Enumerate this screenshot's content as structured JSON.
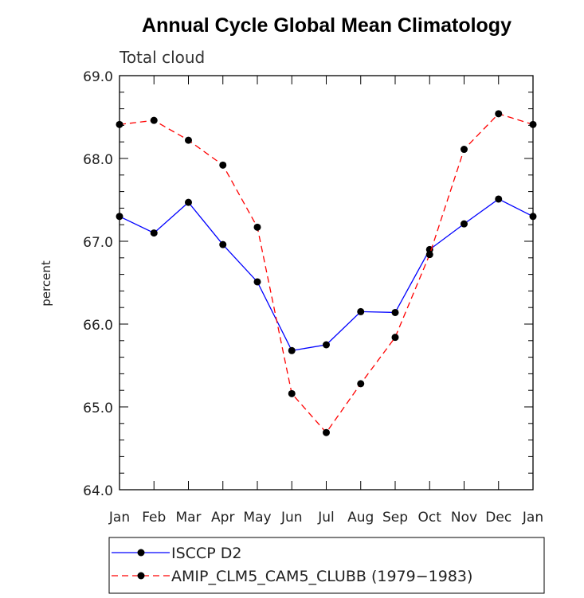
{
  "chart_data": {
    "type": "line",
    "title": "Annual Cycle Global Mean Climatology",
    "subtitle": "Total cloud",
    "ylabel": "percent",
    "xlabel": "",
    "categories": [
      "Jan",
      "Feb",
      "Mar",
      "Apr",
      "May",
      "Jun",
      "Jul",
      "Aug",
      "Sep",
      "Oct",
      "Nov",
      "Dec",
      "Jan"
    ],
    "ylim": [
      64.0,
      69.0
    ],
    "yticks": [
      "64.0",
      "65.0",
      "66.0",
      "67.0",
      "68.0",
      "69.0"
    ],
    "grid": false,
    "legend_position": "bottom",
    "series": [
      {
        "name": "ISCCP D2",
        "color": "#0000ff",
        "dash": "solid",
        "values": [
          67.3,
          67.1,
          67.47,
          66.96,
          66.51,
          65.68,
          65.75,
          66.15,
          66.14,
          66.9,
          67.21,
          67.51,
          67.3
        ]
      },
      {
        "name": "AMIP_CLM5_CAM5_CLUBB (1979−1983)",
        "color": "#ff0000",
        "dash": "dashed",
        "values": [
          68.41,
          68.46,
          68.22,
          67.92,
          67.17,
          65.16,
          64.69,
          65.28,
          65.84,
          66.84,
          68.11,
          68.54,
          68.41
        ]
      }
    ]
  }
}
